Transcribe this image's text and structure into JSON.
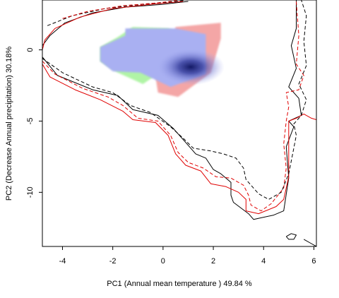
{
  "chart_data": {
    "type": "line",
    "xlabel": "PC1 (Annual mean temperature ) 49.84 %",
    "ylabel": "PC2 (Decrease Annual precipitation) 30.18%",
    "xlim": [
      -4.8,
      6.1
    ],
    "ylim": [
      -13.8,
      3.5
    ],
    "xticks": [
      -4,
      -2,
      0,
      2,
      4,
      6
    ],
    "yticks": [
      0,
      -5,
      -10
    ],
    "grid": false,
    "colors": {
      "overlap_blue": "#a9b0f2",
      "only_red": "#f4a6a6",
      "only_green": "#b0f4a6",
      "density_core": "#1a1f6e",
      "contour_black": "#000000",
      "contour_red": "#e00000"
    },
    "regions": [
      {
        "fill": "green",
        "points": [
          [
            -1.2,
            1.6
          ],
          [
            0.2,
            1.5
          ],
          [
            0.5,
            1.3
          ],
          [
            0.2,
            -0.6
          ],
          [
            -0.3,
            -1.8
          ],
          [
            -0.8,
            -2.4
          ],
          [
            -1.8,
            -1.6
          ],
          [
            -2.5,
            -0.8
          ],
          [
            -2.5,
            0.2
          ],
          [
            -1.8,
            0.9
          ]
        ]
      },
      {
        "fill": "red",
        "points": [
          [
            0.5,
            1.6
          ],
          [
            2.3,
            1.9
          ],
          [
            2.3,
            0.8
          ],
          [
            1.9,
            -1.6
          ],
          [
            0.6,
            -3.3
          ],
          [
            -0.2,
            -3.0
          ],
          [
            -0.3,
            -1.9
          ],
          [
            0.2,
            -0.6
          ]
        ]
      },
      {
        "fill": "blue",
        "points": [
          [
            -1.5,
            1.5
          ],
          [
            0.5,
            1.5
          ],
          [
            1.7,
            1.1
          ],
          [
            1.7,
            -1.7
          ],
          [
            0.3,
            -2.6
          ],
          [
            -0.9,
            -1.6
          ],
          [
            -2.0,
            -1.5
          ],
          [
            -2.5,
            -0.8
          ],
          [
            -2.5,
            0.2
          ],
          [
            -2.0,
            0.6
          ],
          [
            -1.5,
            1.0
          ]
        ]
      }
    ],
    "density_core": {
      "x": 1.1,
      "y": -1.2
    },
    "contours": [
      {
        "color": "black",
        "dash": "solid",
        "points": [
          [
            -4.8,
            0.3
          ],
          [
            -4.5,
            1.0
          ],
          [
            -3.9,
            1.9
          ],
          [
            -2.8,
            2.6
          ],
          [
            -1.5,
            3.0
          ],
          [
            0.0,
            3.2
          ],
          [
            0.5,
            3.3
          ],
          [
            1.0,
            3.4
          ]
        ]
      },
      {
        "color": "red",
        "dash": "solid",
        "points": [
          [
            -4.8,
            0.0
          ],
          [
            -4.7,
            0.7
          ],
          [
            -4.3,
            1.5
          ],
          [
            -3.3,
            2.3
          ],
          [
            -2.0,
            2.9
          ],
          [
            -0.5,
            3.2
          ],
          [
            0.8,
            3.4
          ]
        ]
      },
      {
        "color": "black",
        "dash": "dashed",
        "points": [
          [
            -4.6,
            1.7
          ],
          [
            -3.6,
            2.4
          ],
          [
            -2.3,
            2.9
          ],
          [
            -0.8,
            3.2
          ],
          [
            0.6,
            3.4
          ],
          [
            0.9,
            3.5
          ]
        ]
      },
      {
        "color": "red",
        "dash": "dashed",
        "points": [
          [
            -4.0,
            2.2
          ],
          [
            -3.0,
            2.7
          ],
          [
            -1.6,
            3.1
          ],
          [
            -0.2,
            3.3
          ],
          [
            0.7,
            3.5
          ]
        ]
      },
      {
        "color": "black",
        "dash": "solid",
        "points": [
          [
            -4.8,
            -0.5
          ],
          [
            -4.2,
            -1.8
          ],
          [
            -2.8,
            -2.8
          ],
          [
            -1.8,
            -3.2
          ],
          [
            -1.2,
            -4.2
          ],
          [
            -0.2,
            -4.6
          ],
          [
            0.4,
            -5.5
          ],
          [
            0.9,
            -6.5
          ],
          [
            1.3,
            -7.3
          ],
          [
            1.7,
            -7.6
          ],
          [
            2.0,
            -8.4
          ],
          [
            2.3,
            -8.7
          ],
          [
            2.7,
            -9.3
          ],
          [
            2.7,
            -10.2
          ],
          [
            2.8,
            -10.7
          ],
          [
            3.4,
            -11.5
          ],
          [
            3.6,
            -11.9
          ],
          [
            4.4,
            -11.6
          ],
          [
            4.8,
            -11.3
          ],
          [
            5.0,
            -9.0
          ],
          [
            4.9,
            -6.8
          ],
          [
            5.2,
            -5.4
          ],
          [
            5.0,
            -5.0
          ],
          [
            5.5,
            -4.6
          ],
          [
            5.4,
            -3.4
          ],
          [
            5.0,
            -2.6
          ],
          [
            5.3,
            -1.3
          ],
          [
            5.1,
            0.3
          ],
          [
            5.3,
            1.5
          ],
          [
            5.3,
            3.5
          ]
        ]
      },
      {
        "color": "red",
        "dash": "solid",
        "points": [
          [
            -4.8,
            -1.0
          ],
          [
            -4.5,
            -1.9
          ],
          [
            -3.5,
            -2.8
          ],
          [
            -2.5,
            -3.5
          ],
          [
            -1.6,
            -4.3
          ],
          [
            -1.2,
            -4.9
          ],
          [
            -0.3,
            -5.1
          ],
          [
            0.2,
            -6.0
          ],
          [
            0.5,
            -7.3
          ],
          [
            0.9,
            -8.1
          ],
          [
            1.5,
            -8.5
          ],
          [
            1.9,
            -9.4
          ],
          [
            2.5,
            -9.6
          ],
          [
            3.0,
            -10.0
          ],
          [
            3.3,
            -10.5
          ],
          [
            3.3,
            -11.3
          ],
          [
            3.8,
            -11.5
          ],
          [
            4.5,
            -11.0
          ],
          [
            4.8,
            -10.5
          ],
          [
            5.0,
            -8.9
          ],
          [
            5.0,
            -7.3
          ],
          [
            5.0,
            -5.0
          ],
          [
            5.3,
            -4.8
          ],
          [
            5.6,
            -4.5
          ],
          [
            5.9,
            -4.8
          ],
          [
            6.1,
            -4.9
          ]
        ]
      },
      {
        "color": "red",
        "dash": "dashed",
        "points": [
          [
            -4.8,
            -0.8
          ],
          [
            -4.3,
            -1.7
          ],
          [
            -3.2,
            -2.7
          ],
          [
            -2.2,
            -3.3
          ],
          [
            -1.6,
            -3.9
          ],
          [
            -1.0,
            -4.8
          ],
          [
            -0.2,
            -5.0
          ],
          [
            0.3,
            -6.0
          ],
          [
            0.6,
            -7.2
          ],
          [
            1.0,
            -7.9
          ],
          [
            1.6,
            -8.3
          ],
          [
            2.1,
            -8.9
          ],
          [
            2.7,
            -9.0
          ],
          [
            3.2,
            -9.5
          ],
          [
            3.4,
            -10.2
          ],
          [
            3.5,
            -10.9
          ],
          [
            3.9,
            -11.3
          ],
          [
            4.3,
            -10.8
          ],
          [
            4.8,
            -9.7
          ],
          [
            4.9,
            -8.3
          ],
          [
            4.8,
            -6.6
          ],
          [
            4.9,
            -5.0
          ],
          [
            5.0,
            -4.0
          ],
          [
            4.9,
            -3.0
          ],
          [
            5.4,
            -2.8
          ],
          [
            5.6,
            -1.8
          ],
          [
            5.3,
            -1.0
          ],
          [
            5.4,
            1.0
          ],
          [
            5.3,
            3.4
          ]
        ]
      },
      {
        "color": "black",
        "dash": "dashed",
        "points": [
          [
            -4.8,
            -0.6
          ],
          [
            -4.0,
            -1.6
          ],
          [
            -2.8,
            -2.6
          ],
          [
            -2.0,
            -3.0
          ],
          [
            -1.3,
            -3.9
          ],
          [
            -0.5,
            -4.4
          ],
          [
            0.3,
            -5.4
          ],
          [
            0.8,
            -6.2
          ],
          [
            1.2,
            -6.9
          ],
          [
            1.9,
            -7.1
          ],
          [
            2.4,
            -7.3
          ],
          [
            2.9,
            -7.6
          ],
          [
            3.2,
            -8.3
          ],
          [
            3.3,
            -9.1
          ],
          [
            3.8,
            -10.1
          ],
          [
            4.2,
            -10.5
          ],
          [
            4.7,
            -10.0
          ],
          [
            5.0,
            -8.7
          ],
          [
            5.2,
            -6.9
          ],
          [
            5.3,
            -6.0
          ],
          [
            5.2,
            -5.2
          ],
          [
            5.5,
            -4.6
          ],
          [
            5.7,
            -3.5
          ],
          [
            5.4,
            -2.4
          ],
          [
            5.7,
            -1.1
          ],
          [
            5.6,
            0.6
          ],
          [
            5.7,
            2.4
          ],
          [
            5.5,
            3.5
          ]
        ]
      },
      {
        "color": "black",
        "dash": "solid",
        "points": [
          [
            4.9,
            -13.1
          ],
          [
            5.1,
            -12.9
          ],
          [
            5.3,
            -13.0
          ],
          [
            5.2,
            -13.3
          ],
          [
            5.0,
            -13.3
          ],
          [
            4.9,
            -13.1
          ]
        ]
      },
      {
        "color": "black",
        "dash": "solid",
        "points": [
          [
            5.6,
            -13.3
          ],
          [
            5.9,
            -13.6
          ],
          [
            6.1,
            -13.8
          ]
        ]
      }
    ]
  }
}
